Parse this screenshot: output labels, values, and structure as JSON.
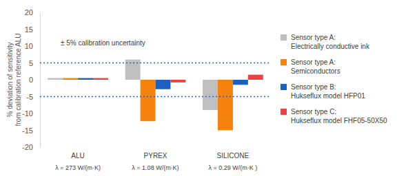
{
  "chart_data": {
    "type": "bar",
    "y_label": "% deviation of sensitivity from calibration reference ALU",
    "categories": [
      "ALU",
      "PYREX",
      "SILICONE"
    ],
    "category_sublabels": [
      "λ = 273 W/(m·K)",
      "λ = 1.08 W/(m·K)",
      "λ = 0.29 W/(m·K )"
    ],
    "series": [
      {
        "name": "Sensor type A: Electrically conductive ink",
        "color": "#bfbfbf",
        "values": [
          0.5,
          6,
          -9
        ]
      },
      {
        "name": "Sensor type A: Semiconductors",
        "color": "#f5820d",
        "values": [
          0.5,
          -12.3,
          -15
        ]
      },
      {
        "name": "Sensor type B: Hukseflux model HFP01",
        "color": "#1f5fc0",
        "values": [
          0.5,
          -2.8,
          -1.5
        ]
      },
      {
        "name": "Sensor type C: Hukseflux model FHF05-50X50",
        "color": "#f04040",
        "values": [
          0.5,
          -0.8,
          1.5
        ]
      }
    ],
    "ylim": [
      -20,
      20
    ],
    "yticks": [
      -20,
      -15,
      -10,
      -5,
      0,
      5,
      10,
      15,
      20
    ],
    "reference_lines": [
      5,
      -5
    ],
    "annotations": [
      "± 5% calibration uncertainty"
    ],
    "legend": "right",
    "grid": false
  }
}
